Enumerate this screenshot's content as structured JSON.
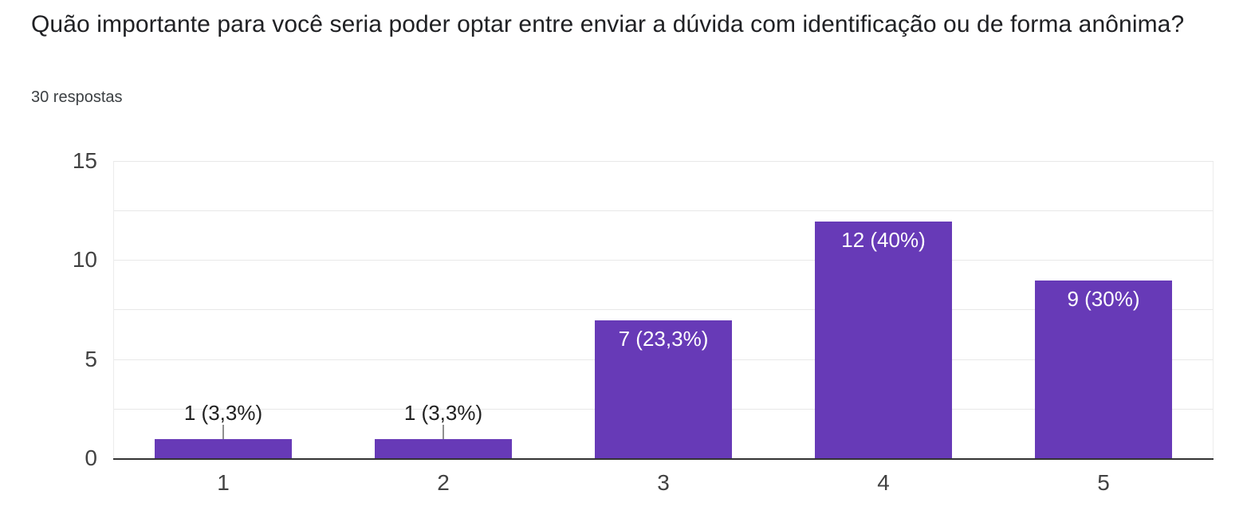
{
  "header": {
    "title": "Quão importante para você seria poder optar entre enviar a dúvida com identificação ou de forma anônima?",
    "subtitle": "30 respostas"
  },
  "chart_data": {
    "type": "bar",
    "title": "Quão importante para você seria poder optar entre enviar a dúvida com identificação ou de forma anônima?",
    "subtitle": "30 respostas",
    "total_responses": 30,
    "categories": [
      "1",
      "2",
      "3",
      "4",
      "5"
    ],
    "values": [
      1,
      1,
      7,
      12,
      9
    ],
    "bar_labels": [
      "1 (3,3%)",
      "1 (3,3%)",
      "7 (23,3%)",
      "12 (40%)",
      "9 (30%)"
    ],
    "xlabel": "",
    "ylabel": "",
    "ylim": [
      0,
      15
    ],
    "ytick_values": [
      0,
      5,
      10,
      15
    ],
    "ytick_labels": [
      "0",
      "5",
      "10",
      "15"
    ],
    "gridline_interval": 2.5,
    "grid": true,
    "legend": "none",
    "colors": {
      "bar": "#673ab7",
      "label_inside": "#ffffff",
      "label_outside": "#212121",
      "axis_text": "#424242",
      "gridline": "#e8e8e8",
      "plot_edge": "#ececec",
      "baseline": "#333333",
      "callout": "#8f8f8f"
    }
  }
}
